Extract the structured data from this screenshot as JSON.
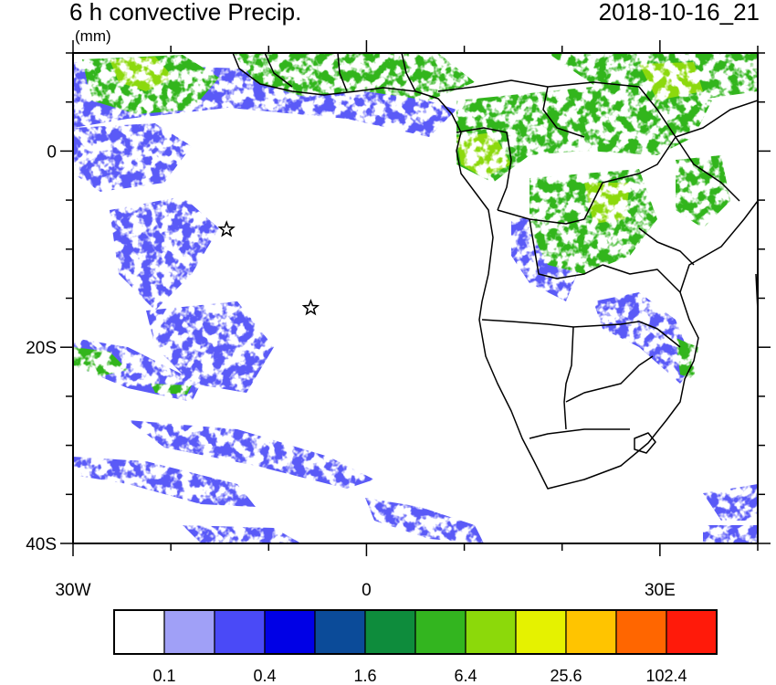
{
  "title": "6 h convective Precip.",
  "datetime": "2018-10-16_21",
  "units": "(mm)",
  "map": {
    "lon_range": [
      -30,
      40
    ],
    "lat_range": [
      -40,
      10
    ],
    "y_ticks": [
      {
        "lat": 0,
        "label": "0"
      },
      {
        "lat": -20,
        "label": "20S"
      },
      {
        "lat": -40,
        "label": "40S"
      }
    ],
    "x_ticks": [
      {
        "lon": -30,
        "label": "30W"
      },
      {
        "lon": 0,
        "label": "0"
      },
      {
        "lon": 30,
        "label": "30E"
      }
    ],
    "markers": [
      {
        "name": "star-marker",
        "lon": -14.3,
        "lat": -8.0
      },
      {
        "name": "star-marker",
        "lon": -5.7,
        "lat": -16.0
      }
    ],
    "land_color": "#ffffff",
    "ocean_color": "#ffffff",
    "border_color": "#000000"
  },
  "colorbar": {
    "colors": [
      "#ffffff",
      "#a0a0f7",
      "#4a4af7",
      "#0000e6",
      "#0b4b99",
      "#0e8c3c",
      "#33b51f",
      "#8cd90a",
      "#e5f200",
      "#ffc400",
      "#ff6600",
      "#ff1a0a"
    ],
    "labels": [
      {
        "boundary": 1,
        "text": "0.1"
      },
      {
        "boundary": 3,
        "text": "0.4"
      },
      {
        "boundary": 5,
        "text": "1.6"
      },
      {
        "boundary": 7,
        "text": "6.4"
      },
      {
        "boundary": 9,
        "text": "25.6"
      },
      {
        "boundary": 11,
        "text": "102.4"
      }
    ]
  }
}
